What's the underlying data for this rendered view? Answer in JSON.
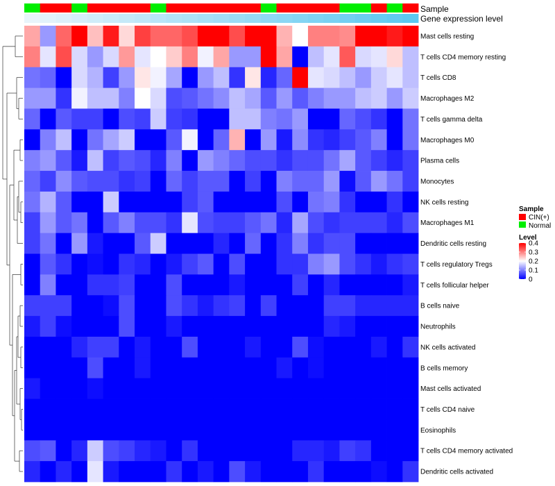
{
  "colors": {
    "cin": "#ff0000",
    "normal": "#00ee00",
    "low": "#0000ff",
    "mid": "#ffffff",
    "high": "#ff0000",
    "expr_light": "#e8f4fb",
    "expr_dark": "#5bc8f0"
  },
  "legend": {
    "sample_title": "Sample",
    "sample_items": [
      {
        "label": "CIN(+)",
        "color": "#ff0000"
      },
      {
        "label": "Normal",
        "color": "#00ee00"
      }
    ],
    "level_title": "Level",
    "level_ticks": [
      {
        "value": 0.4,
        "label": "0.4"
      },
      {
        "value": 0.3,
        "label": "0.3"
      },
      {
        "value": 0.2,
        "label": "0.2"
      },
      {
        "value": 0.1,
        "label": "0.1"
      },
      {
        "value": 0.0,
        "label": "0"
      }
    ]
  },
  "chart_data": {
    "type": "heatmap",
    "title": "",
    "value_range": [
      0,
      0.4
    ],
    "color_scale": [
      "#0000ff",
      "#ffffff",
      "#ff0000"
    ],
    "annotations": [
      {
        "name": "Sample",
        "values": [
          "Normal",
          "CIN(+)",
          "CIN(+)",
          "Normal",
          "CIN(+)",
          "CIN(+)",
          "CIN(+)",
          "CIN(+)",
          "Normal",
          "CIN(+)",
          "CIN(+)",
          "CIN(+)",
          "CIN(+)",
          "CIN(+)",
          "CIN(+)",
          "Normal",
          "CIN(+)",
          "CIN(+)",
          "CIN(+)",
          "CIN(+)",
          "Normal",
          "Normal",
          "CIN(+)",
          "Normal",
          "CIN(+)"
        ]
      },
      {
        "name": "Gene expression level",
        "values": [
          0.0,
          0.04,
          0.08,
          0.13,
          0.17,
          0.21,
          0.25,
          0.29,
          0.33,
          0.38,
          0.42,
          0.46,
          0.5,
          0.54,
          0.58,
          0.63,
          0.67,
          0.71,
          0.75,
          0.79,
          0.83,
          0.88,
          0.92,
          0.96,
          1.0
        ]
      }
    ],
    "rows": [
      "Mast cells resting",
      "T cells CD4 memory resting",
      "T cells CD8",
      "Macrophages M2",
      "T cells gamma delta",
      "Macrophages M0",
      "Plasma cells",
      "Monocytes",
      "NK cells resting",
      "Macrophages M1",
      "Dendritic cells resting",
      "T cells regulatory  Tregs",
      "T cells follicular helper",
      "B cells naive",
      "Neutrophils",
      "NK cells activated",
      "B cells memory",
      "Mast cells activated",
      "T cells CD4 naive",
      "Eosinophils",
      "T cells CD4 memory activated",
      "Dendritic cells activated"
    ],
    "values": [
      [
        0.27,
        0.12,
        0.32,
        0.4,
        0.25,
        0.38,
        0.23,
        0.35,
        0.32,
        0.32,
        0.34,
        0.4,
        0.4,
        0.34,
        0.4,
        0.4,
        0.26,
        0.2,
        0.3,
        0.3,
        0.29,
        0.4,
        0.4,
        0.38,
        0.4
      ],
      [
        0.3,
        0.18,
        0.34,
        0.17,
        0.12,
        0.17,
        0.28,
        0.18,
        0.2,
        0.24,
        0.3,
        0.19,
        0.27,
        0.12,
        0.12,
        0.4,
        0.27,
        0.0,
        0.15,
        0.18,
        0.33,
        0.17,
        0.18,
        0.23,
        0.15
      ],
      [
        0.09,
        0.08,
        0.0,
        0.17,
        0.14,
        0.05,
        0.12,
        0.22,
        0.19,
        0.13,
        0.0,
        0.12,
        0.15,
        0.04,
        0.22,
        0.03,
        0.08,
        0.4,
        0.18,
        0.17,
        0.15,
        0.12,
        0.16,
        0.18,
        0.15
      ],
      [
        0.12,
        0.12,
        0.04,
        0.19,
        0.15,
        0.15,
        0.1,
        0.2,
        0.17,
        0.06,
        0.07,
        0.09,
        0.11,
        0.15,
        0.13,
        0.07,
        0.12,
        0.07,
        0.1,
        0.12,
        0.12,
        0.15,
        0.16,
        0.12,
        0.16
      ],
      [
        0.08,
        0.0,
        0.07,
        0.05,
        0.05,
        0.0,
        0.06,
        0.05,
        0.16,
        0.05,
        0.04,
        0.0,
        0.0,
        0.15,
        0.15,
        0.1,
        0.09,
        0.12,
        0.0,
        0.0,
        0.08,
        0.06,
        0.04,
        0.0,
        0.09
      ],
      [
        0.0,
        0.1,
        0.15,
        0.0,
        0.09,
        0.13,
        0.16,
        0.0,
        0.0,
        0.07,
        0.19,
        0.0,
        0.08,
        0.26,
        0.0,
        0.12,
        0.02,
        0.11,
        0.04,
        0.03,
        0.05,
        0.07,
        0.1,
        0.0,
        0.09
      ],
      [
        0.1,
        0.12,
        0.07,
        0.02,
        0.15,
        0.05,
        0.07,
        0.06,
        0.03,
        0.1,
        0.0,
        0.12,
        0.1,
        0.08,
        0.06,
        0.06,
        0.04,
        0.06,
        0.06,
        0.09,
        0.13,
        0.07,
        0.05,
        0.03,
        0.05
      ],
      [
        0.08,
        0.05,
        0.11,
        0.07,
        0.06,
        0.06,
        0.04,
        0.05,
        0.0,
        0.08,
        0.05,
        0.07,
        0.07,
        0.0,
        0.05,
        0.0,
        0.1,
        0.08,
        0.08,
        0.12,
        0.01,
        0.07,
        0.12,
        0.09,
        0.05
      ],
      [
        0.09,
        0.14,
        0.07,
        0.0,
        0.0,
        0.16,
        0.0,
        0.0,
        0.0,
        0.0,
        0.05,
        0.07,
        0.0,
        0.0,
        0.0,
        0.0,
        0.06,
        0.0,
        0.09,
        0.1,
        0.04,
        0.0,
        0.0,
        0.04,
        0.0
      ],
      [
        0.05,
        0.12,
        0.07,
        0.09,
        0.0,
        0.07,
        0.1,
        0.06,
        0.06,
        0.04,
        0.18,
        0.06,
        0.05,
        0.05,
        0.07,
        0.09,
        0.03,
        0.13,
        0.06,
        0.04,
        0.05,
        0.05,
        0.05,
        0.03,
        0.06
      ],
      [
        0.05,
        0.09,
        0.0,
        0.12,
        0.02,
        0.0,
        0.0,
        0.07,
        0.16,
        0.0,
        0.0,
        0.0,
        0.03,
        0.0,
        0.08,
        0.0,
        0.04,
        0.1,
        0.04,
        0.06,
        0.06,
        0.0,
        0.0,
        0.0,
        0.0
      ],
      [
        0.0,
        0.07,
        0.04,
        0.0,
        0.01,
        0.0,
        0.04,
        0.03,
        0.0,
        0.02,
        0.05,
        0.07,
        0.0,
        0.06,
        0.0,
        0.0,
        0.04,
        0.04,
        0.1,
        0.12,
        0.06,
        0.04,
        0.02,
        0.04,
        0.05
      ],
      [
        0.0,
        0.1,
        0.0,
        0.0,
        0.04,
        0.04,
        0.05,
        0.0,
        0.0,
        0.06,
        0.0,
        0.0,
        0.0,
        0.02,
        0.0,
        0.0,
        0.0,
        0.05,
        0.0,
        0.03,
        0.0,
        0.0,
        0.0,
        0.0,
        0.02
      ],
      [
        0.05,
        0.05,
        0.05,
        0.0,
        0.0,
        0.01,
        0.06,
        0.0,
        0.0,
        0.06,
        0.04,
        0.02,
        0.04,
        0.05,
        0.0,
        0.05,
        0.0,
        0.0,
        0.0,
        0.05,
        0.05,
        0.03,
        0.03,
        0.03,
        0.03
      ],
      [
        0.02,
        0.05,
        0.01,
        0.0,
        0.0,
        0.0,
        0.06,
        0.0,
        0.0,
        0.02,
        0.0,
        0.0,
        0.0,
        0.0,
        0.0,
        0.0,
        0.0,
        0.0,
        0.0,
        0.03,
        0.02,
        0.0,
        0.0,
        0.0,
        0.0
      ],
      [
        0.0,
        0.0,
        0.0,
        0.03,
        0.05,
        0.05,
        0.0,
        0.02,
        0.0,
        0.0,
        0.06,
        0.0,
        0.0,
        0.0,
        0.02,
        0.0,
        0.0,
        0.06,
        0.01,
        0.0,
        0.0,
        0.0,
        0.02,
        0.0,
        0.04
      ],
      [
        0.0,
        0.0,
        0.0,
        0.0,
        0.06,
        0.0,
        0.0,
        0.02,
        0.0,
        0.0,
        0.0,
        0.0,
        0.0,
        0.0,
        0.0,
        0.0,
        0.02,
        0.0,
        0.01,
        0.0,
        0.0,
        0.0,
        0.0,
        0.0,
        0.0
      ],
      [
        0.02,
        0.0,
        0.0,
        0.0,
        0.01,
        0.0,
        0.0,
        0.0,
        0.0,
        0.0,
        0.0,
        0.0,
        0.0,
        0.0,
        0.0,
        0.0,
        0.0,
        0.0,
        0.0,
        0.0,
        0.0,
        0.0,
        0.0,
        0.0,
        0.0
      ],
      [
        0.0,
        0.0,
        0.0,
        0.0,
        0.0,
        0.0,
        0.0,
        0.0,
        0.0,
        0.0,
        0.0,
        0.0,
        0.0,
        0.0,
        0.0,
        0.0,
        0.0,
        0.0,
        0.0,
        0.0,
        0.0,
        0.0,
        0.0,
        0.0,
        0.0
      ],
      [
        0.0,
        0.0,
        0.0,
        0.0,
        0.0,
        0.0,
        0.0,
        0.0,
        0.0,
        0.0,
        0.0,
        0.0,
        0.0,
        0.0,
        0.0,
        0.0,
        0.0,
        0.0,
        0.0,
        0.0,
        0.0,
        0.0,
        0.0,
        0.0,
        0.0
      ],
      [
        0.06,
        0.07,
        0.0,
        0.03,
        0.16,
        0.06,
        0.05,
        0.03,
        0.02,
        0.0,
        0.04,
        0.0,
        0.0,
        0.0,
        0.0,
        0.0,
        0.0,
        0.03,
        0.03,
        0.02,
        0.05,
        0.04,
        0.0,
        0.0,
        0.0
      ],
      [
        0.03,
        0.0,
        0.03,
        0.0,
        0.18,
        0.02,
        0.0,
        0.0,
        0.0,
        0.04,
        0.0,
        0.02,
        0.0,
        0.06,
        0.02,
        0.0,
        0.0,
        0.0,
        0.04,
        0.0,
        0.0,
        0.0,
        0.01,
        0.0,
        0.04
      ]
    ]
  }
}
